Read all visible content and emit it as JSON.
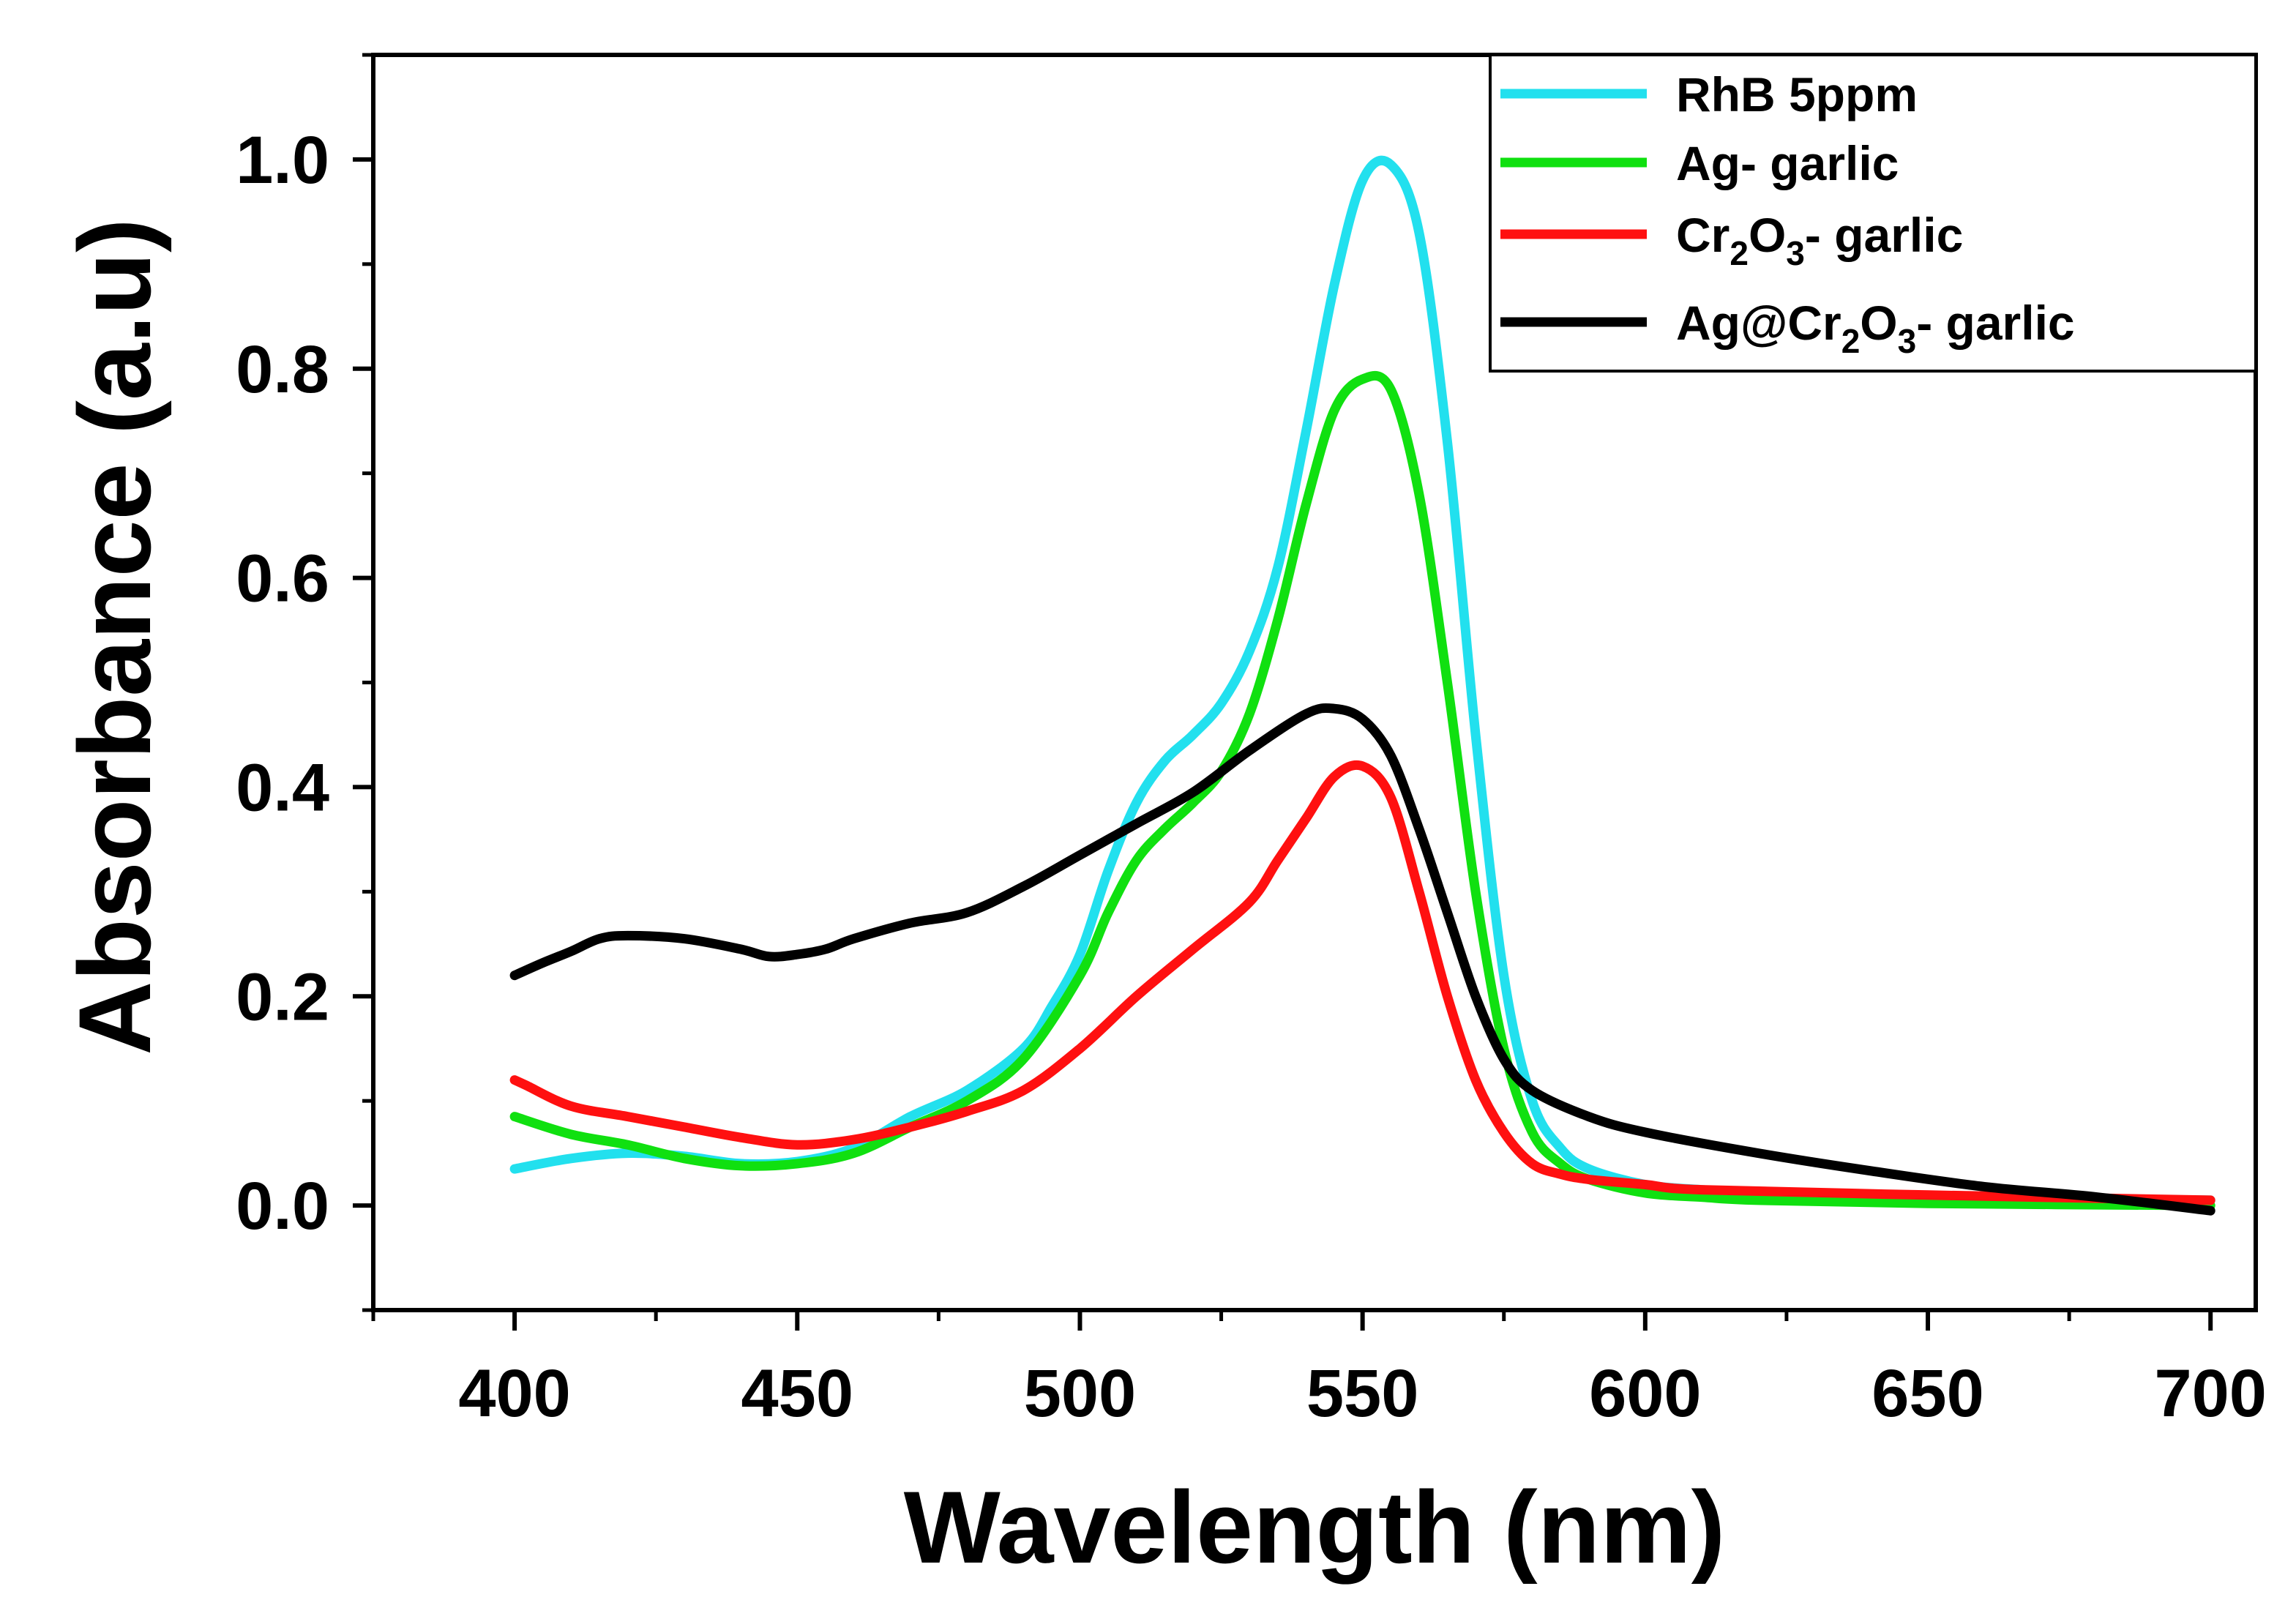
{
  "chart_data": {
    "type": "line",
    "title": "",
    "xlabel": "Wavelength (nm)",
    "ylabel": "Absorbance (a.u)",
    "xlim": [
      375,
      708
    ],
    "ylim": [
      -0.1,
      1.1
    ],
    "xticks": [
      400,
      450,
      500,
      550,
      600,
      650,
      700
    ],
    "xtick_labels": [
      "400",
      "450",
      "500",
      "550",
      "600",
      "650",
      "700"
    ],
    "yticks": [
      0.0,
      0.2,
      0.4,
      0.6,
      0.8,
      1.0
    ],
    "ytick_labels": [
      "0.0",
      "0.2",
      "0.4",
      "0.6",
      "0.8",
      "1.0"
    ],
    "grid": false,
    "legend_position": "top-right",
    "series": [
      {
        "name": "RhB 5ppm",
        "legend": {
          "main": "RhB 5ppm"
        },
        "color": "#22e0ee",
        "x": [
          400,
          410,
          420,
          430,
          440,
          450,
          460,
          470,
          480,
          490,
          495,
          500,
          505,
          510,
          515,
          520,
          525,
          530,
          535,
          540,
          545,
          550,
          555,
          560,
          565,
          570,
          575,
          580,
          585,
          590,
          600,
          610,
          620,
          650,
          700
        ],
        "y": [
          0.035,
          0.045,
          0.05,
          0.047,
          0.04,
          0.042,
          0.055,
          0.085,
          0.11,
          0.15,
          0.19,
          0.24,
          0.32,
          0.385,
          0.425,
          0.45,
          0.48,
          0.53,
          0.61,
          0.74,
          0.88,
          0.98,
          0.995,
          0.93,
          0.73,
          0.45,
          0.22,
          0.1,
          0.055,
          0.035,
          0.02,
          0.015,
          0.012,
          0.008,
          0.005
        ]
      },
      {
        "name": "Ag- garlic",
        "legend": {
          "main": "Ag- garlic"
        },
        "color": "#10e010",
        "x": [
          400,
          410,
          420,
          430,
          440,
          450,
          460,
          470,
          480,
          490,
          500,
          505,
          510,
          515,
          520,
          525,
          530,
          535,
          540,
          545,
          550,
          555,
          560,
          565,
          570,
          575,
          580,
          585,
          590,
          600,
          610,
          620,
          650,
          700
        ],
        "y": [
          0.085,
          0.068,
          0.058,
          0.045,
          0.038,
          0.04,
          0.05,
          0.075,
          0.1,
          0.14,
          0.22,
          0.28,
          0.33,
          0.36,
          0.385,
          0.415,
          0.47,
          0.56,
          0.67,
          0.76,
          0.79,
          0.78,
          0.68,
          0.5,
          0.3,
          0.15,
          0.07,
          0.04,
          0.025,
          0.012,
          0.008,
          0.005,
          0.002,
          0.0
        ]
      },
      {
        "name": "Cr2O3- garlic",
        "legend": {
          "main": "Cr",
          "sub1": "2",
          "mid": "O",
          "sub2": "3",
          "tail": "- garlic"
        },
        "color": "#ff1010",
        "x": [
          400,
          402,
          410,
          420,
          430,
          440,
          450,
          460,
          470,
          480,
          490,
          500,
          510,
          520,
          530,
          535,
          540,
          545,
          550,
          555,
          560,
          565,
          570,
          575,
          580,
          585,
          590,
          600,
          610,
          650,
          700
        ],
        "y": [
          0.12,
          0.115,
          0.095,
          0.085,
          0.075,
          0.065,
          0.058,
          0.063,
          0.075,
          0.09,
          0.11,
          0.15,
          0.2,
          0.245,
          0.29,
          0.33,
          0.37,
          0.41,
          0.42,
          0.39,
          0.3,
          0.2,
          0.12,
          0.07,
          0.04,
          0.03,
          0.025,
          0.02,
          0.015,
          0.01,
          0.005
        ]
      },
      {
        "name": "Ag@Cr2O3- garlic",
        "legend": {
          "main": "Ag@Cr",
          "sub1": "2",
          "mid": "O",
          "sub2": "3",
          "tail": "- garlic"
        },
        "color": "#000000",
        "x": [
          400,
          405,
          410,
          415,
          420,
          430,
          440,
          445,
          450,
          455,
          460,
          470,
          480,
          490,
          500,
          510,
          520,
          530,
          540,
          545,
          550,
          555,
          560,
          565,
          570,
          575,
          580,
          590,
          600,
          620,
          640,
          660,
          680,
          700
        ],
        "y": [
          0.22,
          0.232,
          0.243,
          0.255,
          0.258,
          0.255,
          0.245,
          0.238,
          0.24,
          0.245,
          0.255,
          0.27,
          0.28,
          0.305,
          0.335,
          0.365,
          0.395,
          0.435,
          0.47,
          0.475,
          0.465,
          0.43,
          0.36,
          0.28,
          0.2,
          0.14,
          0.11,
          0.085,
          0.07,
          0.05,
          0.033,
          0.018,
          0.008,
          -0.005
        ]
      }
    ]
  }
}
